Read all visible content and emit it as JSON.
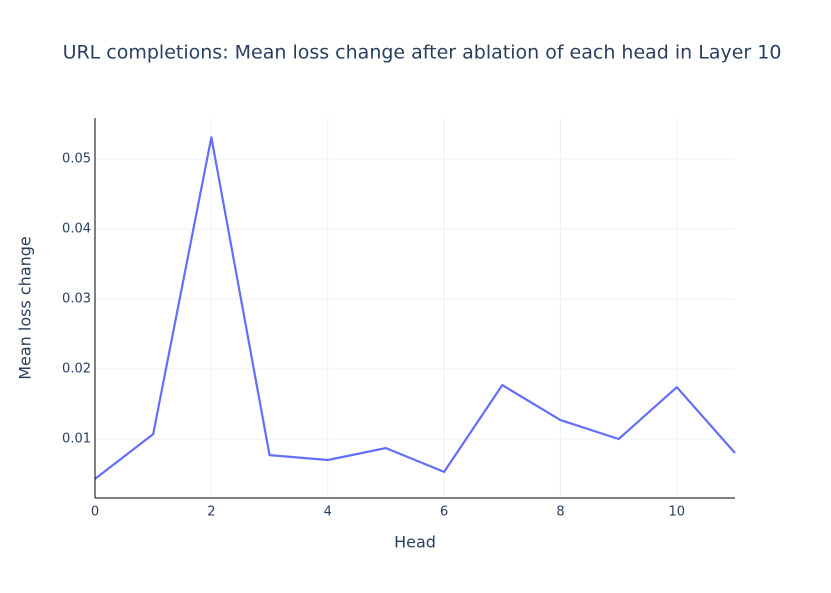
{
  "chart_data": {
    "type": "line",
    "title": "URL completions: Mean loss change after ablation of each head in Layer 10",
    "x_label": "Head",
    "y_label": "Mean loss change",
    "x": [
      0,
      1,
      2,
      3,
      4,
      5,
      6,
      7,
      8,
      9,
      10,
      11
    ],
    "series": [
      {
        "name": "Mean loss change",
        "color": "#636efa",
        "values": [
          0.0043,
          0.0107,
          0.0531,
          0.0077,
          0.007,
          0.0087,
          0.0053,
          0.0177,
          0.0127,
          0.01,
          0.0174,
          0.008
        ]
      }
    ],
    "xlim": [
      0,
      11
    ],
    "xticks": [
      0,
      2,
      4,
      6,
      8,
      10
    ],
    "ylim": [
      0.00157,
      0.05586
    ],
    "yticks": [
      0.01,
      0.02,
      0.03,
      0.04,
      0.05
    ],
    "grid": true
  }
}
